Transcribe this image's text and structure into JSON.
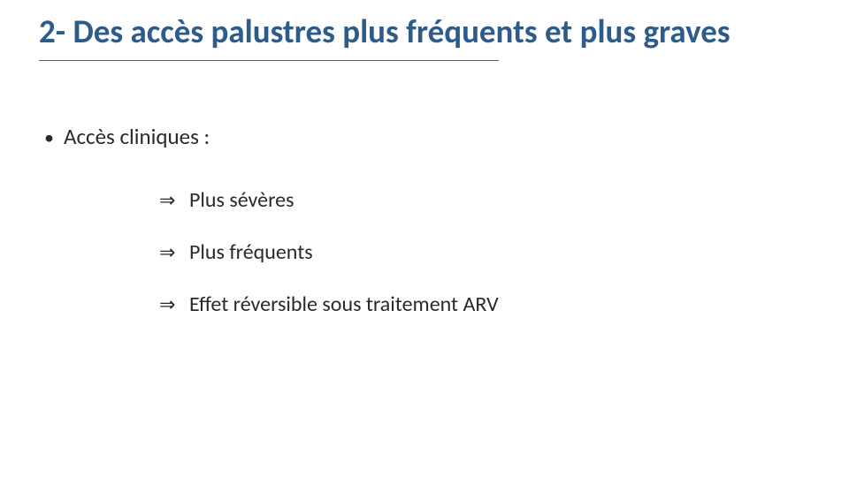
{
  "colors": {
    "title": "#2e5c8a",
    "body_text": "#2a2a2a",
    "rule": "#5b5b5b",
    "background": "#ffffff"
  },
  "title": "2- Des accès palustres plus fréquents et plus graves",
  "lvl1_bullet": "•",
  "lvl1_text": "Accès cliniques :",
  "lvl2_marker": "⇒",
  "lvl2_items": [
    "Plus sévères",
    "Plus fréquents",
    "Effet réversible sous traitement ARV"
  ]
}
